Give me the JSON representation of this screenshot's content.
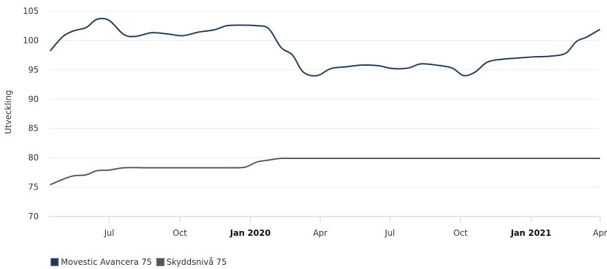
{
  "chart_data": {
    "type": "line",
    "ylabel": "Utveckling",
    "xlabel": "",
    "ylim": [
      70,
      105
    ],
    "yticks": [
      70,
      75,
      80,
      85,
      90,
      95,
      100,
      105
    ],
    "grid": true,
    "legend_position": "bottom-left",
    "x_ticks": [
      {
        "label": "Jul",
        "date": "2019-07-01",
        "bold": false
      },
      {
        "label": "Oct",
        "date": "2019-10-01",
        "bold": false
      },
      {
        "label": "Jan 2020",
        "date": "2020-01-01",
        "bold": true
      },
      {
        "label": "Apr",
        "date": "2020-04-01",
        "bold": false
      },
      {
        "label": "Jul",
        "date": "2020-07-01",
        "bold": false
      },
      {
        "label": "Oct",
        "date": "2020-10-01",
        "bold": false
      },
      {
        "label": "Jan 2021",
        "date": "2021-01-01",
        "bold": true
      },
      {
        "label": "Apr",
        "date": "2021-04-01",
        "bold": false
      }
    ],
    "x_range": [
      "2019-04-15",
      "2021-04-01"
    ],
    "series": [
      {
        "name": "Movestic Avancera 75",
        "color": "#1b3a5c",
        "points": [
          [
            "2019-04-15",
            98.2
          ],
          [
            "2019-05-01",
            100.6
          ],
          [
            "2019-05-15",
            101.6
          ],
          [
            "2019-06-01",
            102.2
          ],
          [
            "2019-06-15",
            103.6
          ],
          [
            "2019-07-01",
            103.4
          ],
          [
            "2019-07-20",
            101.0
          ],
          [
            "2019-08-05",
            100.7
          ],
          [
            "2019-08-25",
            101.3
          ],
          [
            "2019-09-15",
            101.1
          ],
          [
            "2019-10-05",
            100.8
          ],
          [
            "2019-10-25",
            101.4
          ],
          [
            "2019-11-15",
            101.8
          ],
          [
            "2019-12-01",
            102.5
          ],
          [
            "2019-12-20",
            102.6
          ],
          [
            "2020-01-10",
            102.5
          ],
          [
            "2020-01-25",
            102.0
          ],
          [
            "2020-02-10",
            98.8
          ],
          [
            "2020-02-25",
            97.5
          ],
          [
            "2020-03-10",
            94.6
          ],
          [
            "2020-03-28",
            94.0
          ],
          [
            "2020-04-15",
            95.2
          ],
          [
            "2020-05-05",
            95.5
          ],
          [
            "2020-05-25",
            95.8
          ],
          [
            "2020-06-15",
            95.7
          ],
          [
            "2020-07-05",
            95.2
          ],
          [
            "2020-07-25",
            95.3
          ],
          [
            "2020-08-10",
            96.0
          ],
          [
            "2020-08-30",
            95.8
          ],
          [
            "2020-09-20",
            95.3
          ],
          [
            "2020-10-05",
            94.0
          ],
          [
            "2020-10-20",
            94.6
          ],
          [
            "2020-11-05",
            96.3
          ],
          [
            "2020-11-25",
            96.8
          ],
          [
            "2020-12-15",
            97.0
          ],
          [
            "2021-01-05",
            97.2
          ],
          [
            "2021-01-25",
            97.3
          ],
          [
            "2021-02-15",
            97.8
          ],
          [
            "2021-03-01",
            99.8
          ],
          [
            "2021-03-15",
            100.6
          ],
          [
            "2021-04-01",
            101.9
          ]
        ]
      },
      {
        "name": "Skyddsnivå 75",
        "color": "#555555",
        "points": [
          [
            "2019-04-15",
            75.4
          ],
          [
            "2019-05-01",
            76.3
          ],
          [
            "2019-05-15",
            76.9
          ],
          [
            "2019-06-01",
            77.1
          ],
          [
            "2019-06-15",
            77.8
          ],
          [
            "2019-07-01",
            77.9
          ],
          [
            "2019-07-20",
            78.3
          ],
          [
            "2019-08-15",
            78.3
          ],
          [
            "2019-09-15",
            78.3
          ],
          [
            "2019-10-15",
            78.3
          ],
          [
            "2019-11-15",
            78.3
          ],
          [
            "2019-12-05",
            78.3
          ],
          [
            "2019-12-25",
            78.4
          ],
          [
            "2020-01-10",
            79.3
          ],
          [
            "2020-01-25",
            79.6
          ],
          [
            "2020-02-10",
            79.9
          ],
          [
            "2020-03-01",
            79.9
          ],
          [
            "2020-06-01",
            79.9
          ],
          [
            "2020-09-01",
            79.9
          ],
          [
            "2020-12-01",
            79.9
          ],
          [
            "2021-04-01",
            79.9
          ]
        ]
      }
    ]
  }
}
